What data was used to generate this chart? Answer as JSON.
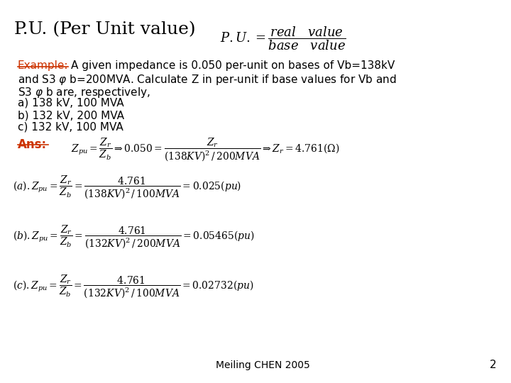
{
  "title": "P.U. (Per Unit value)",
  "bg_color": "#ffffff",
  "title_color": "#000000",
  "example_color": "#cc3300",
  "ans_color": "#cc3300",
  "footer_text": "Meiling CHEN 2005",
  "page_number": "2"
}
